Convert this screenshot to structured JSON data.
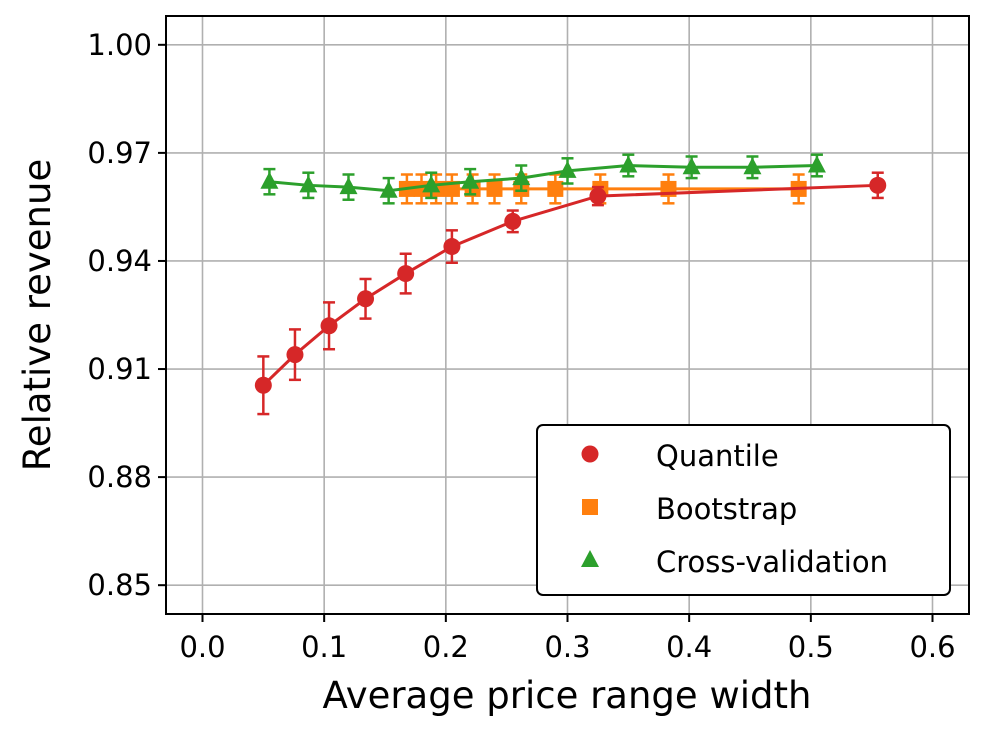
{
  "chart_data": {
    "type": "line",
    "title": "",
    "xlabel": "Average price range width",
    "ylabel": "Relative revenue",
    "xlim": [
      -0.03,
      0.63
    ],
    "ylim": [
      0.842,
      1.008
    ],
    "xticks": [
      0.0,
      0.1,
      0.2,
      0.3,
      0.4,
      0.5,
      0.6
    ],
    "xtick_labels": [
      "0.0",
      "0.1",
      "0.2",
      "0.3",
      "0.4",
      "0.5",
      "0.6"
    ],
    "yticks": [
      0.85,
      0.88,
      0.91,
      0.94,
      0.97,
      1.0
    ],
    "ytick_labels": [
      "0.85",
      "0.88",
      "0.91",
      "0.94",
      "0.97",
      "1.00"
    ],
    "grid": true,
    "legend_position": "bottom-right",
    "series": [
      {
        "name": "Quantile",
        "marker": "circle",
        "color": "#d62728",
        "x": [
          0.05,
          0.076,
          0.104,
          0.134,
          0.167,
          0.205,
          0.255,
          0.325,
          0.555
        ],
        "y": [
          0.9055,
          0.914,
          0.922,
          0.9295,
          0.9365,
          0.944,
          0.951,
          0.958,
          0.961
        ],
        "err": [
          0.008,
          0.007,
          0.0065,
          0.0055,
          0.0055,
          0.0045,
          0.003,
          0.0025,
          0.0035
        ]
      },
      {
        "name": "Bootstrap",
        "marker": "square",
        "color": "#ff7f0e",
        "x": [
          0.168,
          0.18,
          0.192,
          0.205,
          0.222,
          0.24,
          0.262,
          0.29,
          0.327,
          0.383,
          0.49
        ],
        "y": [
          0.96,
          0.96,
          0.96,
          0.96,
          0.96,
          0.96,
          0.96,
          0.96,
          0.96,
          0.96,
          0.96
        ],
        "err": [
          0.004,
          0.004,
          0.004,
          0.004,
          0.004,
          0.004,
          0.004,
          0.004,
          0.004,
          0.004,
          0.004
        ]
      },
      {
        "name": "Cross-validation",
        "marker": "triangle",
        "color": "#2ca02c",
        "x": [
          0.055,
          0.087,
          0.12,
          0.153,
          0.188,
          0.22,
          0.262,
          0.3,
          0.35,
          0.402,
          0.452,
          0.505
        ],
        "y": [
          0.962,
          0.961,
          0.9605,
          0.9595,
          0.961,
          0.962,
          0.963,
          0.965,
          0.9665,
          0.966,
          0.966,
          0.9665
        ],
        "err": [
          0.0035,
          0.0035,
          0.0035,
          0.0035,
          0.0035,
          0.0035,
          0.0035,
          0.0035,
          0.003,
          0.003,
          0.003,
          0.003
        ]
      }
    ]
  }
}
